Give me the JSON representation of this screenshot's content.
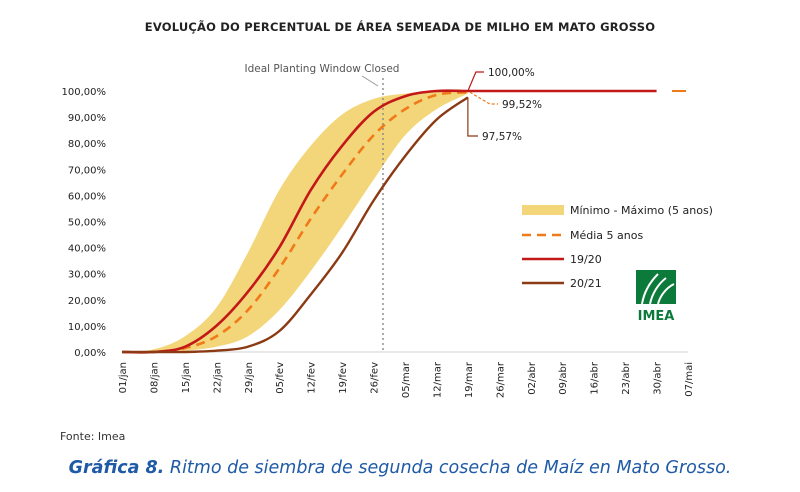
{
  "caption": {
    "prefix": "Gráfica 8.",
    "text": "Ritmo de siembra de segunda cosecha de Maíz en Mato Grosso."
  },
  "source": "Fonte: Imea",
  "logo_text": "IMEA",
  "colors": {
    "band": "#f3d67a",
    "media": "#f07a1a",
    "s1920": "#c21818",
    "s2021": "#8b3a14",
    "caption": "#1f5aa6",
    "logo": "#0c7a3a"
  },
  "chart_data": {
    "type": "line",
    "title": "EVOLUÇÃO DO PERCENTUAL DE ÁREA SEMEADA DE MILHO EM MATO GROSSO",
    "categories": [
      "01/jan",
      "08/jan",
      "15/jan",
      "22/jan",
      "29/jan",
      "05/fev",
      "12/fev",
      "19/fev",
      "26/fev",
      "05/mar",
      "12/mar",
      "19/mar",
      "26/mar",
      "02/abr",
      "09/abr",
      "16/abr",
      "23/abr",
      "30/abr",
      "07/mai"
    ],
    "y_ticks": [
      "0,00%",
      "10,00%",
      "20,00%",
      "30,00%",
      "40,00%",
      "50,00%",
      "60,00%",
      "70,00%",
      "80,00%",
      "90,00%",
      "100,00%"
    ],
    "ylim": [
      0,
      100
    ],
    "grid": false,
    "legend_position": "right",
    "band": {
      "name": "Mínimo - Máximo (5 anos)",
      "min": [
        0,
        0,
        0.5,
        2,
        6,
        16,
        31,
        48,
        66,
        83,
        93,
        99,
        null,
        null,
        null,
        null,
        null,
        null,
        null
      ],
      "max": [
        0,
        1,
        6,
        17,
        38,
        62,
        79,
        91,
        97,
        99,
        99.8,
        100,
        null,
        null,
        null,
        null,
        null,
        null,
        null
      ]
    },
    "series": [
      {
        "name": "Média 5 anos",
        "values": [
          0,
          0,
          1.5,
          6,
          16,
          32,
          51,
          68,
          83,
          93,
          98.5,
          99.52,
          null,
          null,
          null,
          null,
          null,
          null,
          null
        ]
      },
      {
        "name": "19/20",
        "values": [
          0,
          0,
          2,
          10,
          23,
          40,
          62,
          79,
          92,
          98,
          100,
          100,
          100,
          100,
          100,
          100,
          100,
          100,
          null
        ]
      },
      {
        "name": "20/21",
        "values": [
          0,
          0,
          0,
          0.5,
          2,
          8,
          22,
          38,
          58,
          75,
          89,
          97.57,
          null,
          null,
          null,
          null,
          null,
          null,
          null
        ]
      }
    ],
    "annotations": {
      "window": "Ideal Planting Window Closed",
      "max_label": "100,00%",
      "media_label": "99,52%",
      "s2021_label": "97,57%"
    }
  }
}
